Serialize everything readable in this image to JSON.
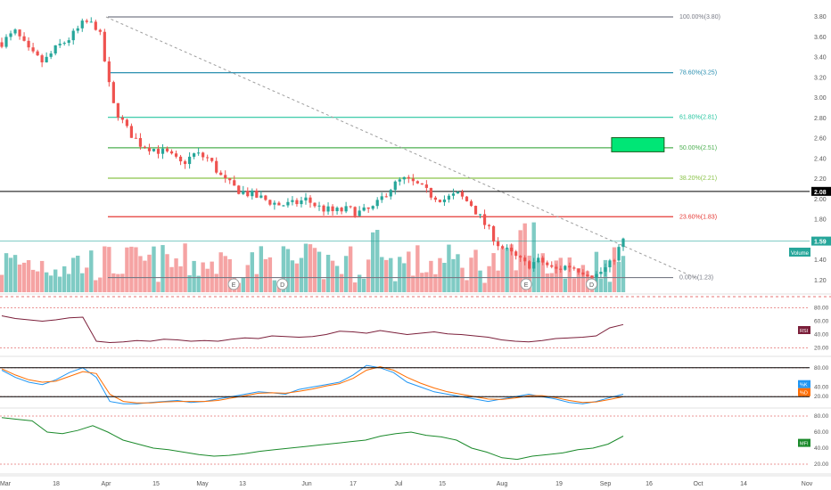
{
  "chart_data": {
    "type": "candlestick",
    "panels": [
      "price-volume",
      "rsi",
      "stochastic",
      "mfi"
    ],
    "price": {
      "axis_ticks": [
        "3.80",
        "3.60",
        "3.40",
        "3.20",
        "3.00",
        "2.80",
        "2.60",
        "2.40",
        "2.20",
        "2.00",
        "1.80",
        "1.60",
        "1.40",
        "1.20"
      ],
      "ylim": [
        1.1,
        3.9
      ],
      "last_price": "1.59",
      "marked_level": "2.08",
      "trendline": {
        "from": {
          "date": "Apr 1",
          "price": 3.8
        },
        "to": {
          "date": "Sep 30",
          "price": 1.23
        }
      },
      "fibonacci": [
        {
          "label": "100.00%(3.80)",
          "value": 3.8,
          "color": "#787b86"
        },
        {
          "label": "78.60%(3.25)",
          "value": 3.25,
          "color": "#2a8fb0"
        },
        {
          "label": "61.80%(2.81)",
          "value": 2.81,
          "color": "#26c6a0"
        },
        {
          "label": "50.00%(2.51)",
          "value": 2.51,
          "color": "#4caf50"
        },
        {
          "label": "38.20%(2.21)",
          "value": 2.21,
          "color": "#8bc34a"
        },
        {
          "label": "23.60%(1.83)",
          "value": 1.83,
          "color": "#e53935"
        },
        {
          "label": "0.00%(1.23)",
          "value": 1.23,
          "color": "#787b86"
        }
      ],
      "close_path": [
        3.55,
        3.65,
        3.45,
        3.35,
        3.5,
        3.6,
        3.75,
        3.7,
        2.95,
        2.7,
        2.55,
        2.5,
        2.45,
        2.35,
        2.45,
        2.4,
        2.2,
        2.1,
        2.05,
        2.0,
        1.95,
        1.95,
        2.0,
        1.92,
        1.88,
        1.9,
        1.87,
        1.92,
        2.1,
        2.2,
        2.15,
        2.05,
        2.0,
        2.05,
        1.95,
        1.75,
        1.55,
        1.45,
        1.35,
        1.4,
        1.3,
        1.35,
        1.3,
        1.25,
        1.35,
        1.59
      ]
    },
    "volume_label": "Volume",
    "event_markers": [
      {
        "text": "E",
        "date": "May 10"
      },
      {
        "text": "D",
        "date": "May 24"
      },
      {
        "text": "E",
        "date": "Aug 8"
      },
      {
        "text": "D",
        "date": "Aug 27"
      }
    ],
    "x_ticks": [
      "Mar",
      "18",
      "Apr",
      "15",
      "May",
      "13",
      "Jun",
      "17",
      "Jul",
      "15",
      "Aug",
      "19",
      "Sep",
      "16",
      "Oct",
      "14",
      "Nov"
    ],
    "rsi": {
      "label": "RSI",
      "axis_ticks": [
        "80.00",
        "60.00",
        "40.00",
        "20.00"
      ],
      "ylim": [
        10,
        90
      ],
      "bands": [
        80,
        20
      ],
      "values": [
        68,
        64,
        62,
        60,
        62,
        65,
        66,
        30,
        28,
        29,
        31,
        30,
        33,
        32,
        30,
        31,
        30,
        33,
        35,
        34,
        38,
        37,
        36,
        37,
        40,
        45,
        44,
        42,
        46,
        43,
        40,
        42,
        44,
        41,
        40,
        38,
        36,
        32,
        30,
        29,
        31,
        34,
        35,
        36,
        38,
        50,
        55
      ]
    },
    "stochastic": {
      "labels": [
        "%K",
        "%D"
      ],
      "axis_ticks": [
        "80.00",
        "40.00",
        "20.00"
      ],
      "ylim": [
        0,
        100
      ],
      "bands": [
        80,
        20
      ],
      "k": [
        75,
        60,
        50,
        45,
        55,
        70,
        80,
        60,
        10,
        5,
        5,
        8,
        10,
        12,
        8,
        10,
        15,
        20,
        25,
        30,
        28,
        25,
        35,
        40,
        45,
        50,
        65,
        85,
        80,
        70,
        50,
        40,
        30,
        25,
        20,
        15,
        10,
        15,
        20,
        25,
        20,
        15,
        8,
        5,
        10,
        18,
        25
      ],
      "d": [
        78,
        65,
        55,
        50,
        52,
        62,
        72,
        68,
        25,
        10,
        7,
        7,
        9,
        10,
        10,
        10,
        12,
        17,
        22,
        27,
        28,
        27,
        31,
        36,
        42,
        47,
        58,
        75,
        82,
        75,
        60,
        48,
        38,
        30,
        25,
        20,
        15,
        14,
        17,
        22,
        22,
        18,
        12,
        8,
        9,
        14,
        20
      ]
    },
    "mfi": {
      "label": "MFI",
      "axis_ticks": [
        "80.00",
        "60.00",
        "40.00",
        "20.00"
      ],
      "ylim": [
        10,
        90
      ],
      "bands": [
        80,
        20
      ],
      "values": [
        78,
        76,
        74,
        60,
        58,
        62,
        68,
        60,
        50,
        45,
        40,
        38,
        35,
        32,
        30,
        31,
        33,
        36,
        38,
        40,
        42,
        44,
        46,
        48,
        50,
        55,
        58,
        60,
        56,
        54,
        50,
        40,
        35,
        28,
        26,
        30,
        32,
        34,
        38,
        40,
        45,
        55
      ]
    },
    "annotation_box": {
      "x0_date": "Sep 3",
      "x1_date": "Sep 20",
      "y0": 2.47,
      "y1": 2.61,
      "color": "#4caf50"
    },
    "colors": {
      "up": "#26a69a",
      "down": "#ef5350",
      "vol_up": "#7fcbc4",
      "vol_down": "#f5a3a3",
      "rsi": "#7b1f3a",
      "k": "#2196f3",
      "d": "#ff6d00",
      "mfi": "#1b8a2b",
      "trend": "#9e9e9e"
    }
  }
}
